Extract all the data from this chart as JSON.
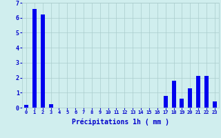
{
  "hours": [
    0,
    1,
    2,
    3,
    4,
    5,
    6,
    7,
    8,
    9,
    10,
    11,
    12,
    13,
    14,
    15,
    16,
    17,
    18,
    19,
    20,
    21,
    22,
    23
  ],
  "values": [
    0.2,
    6.6,
    6.2,
    0.25,
    0,
    0,
    0,
    0,
    0,
    0,
    0,
    0,
    0,
    0,
    0,
    0,
    0,
    0.8,
    1.8,
    0.6,
    1.3,
    2.1,
    2.1,
    0.4
  ],
  "bar_color": "#0000ee",
  "background_color": "#d0eeee",
  "grid_color": "#aacccc",
  "xlabel": "Précipitations 1h ( mm )",
  "xlabel_color": "#0000cc",
  "tick_color": "#0000cc",
  "ylim": [
    0,
    7
  ],
  "yticks": [
    0,
    1,
    2,
    3,
    4,
    5,
    6,
    7
  ],
  "bar_width": 0.5
}
